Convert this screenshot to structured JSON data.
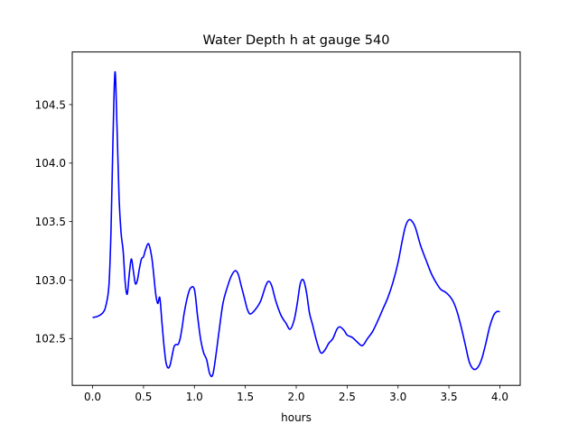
{
  "chart_data": {
    "type": "line",
    "title": "Water Depth h at gauge 540",
    "xlabel": "hours",
    "ylabel": "",
    "xlim": [
      -0.2,
      4.2
    ],
    "ylim": [
      102.1,
      104.95
    ],
    "xticks": [
      0.0,
      0.5,
      1.0,
      1.5,
      2.0,
      2.5,
      3.0,
      3.5,
      4.0
    ],
    "xtick_labels": [
      "0.0",
      "0.5",
      "1.0",
      "1.5",
      "2.0",
      "2.5",
      "3.0",
      "3.5",
      "4.0"
    ],
    "yticks": [
      102.5,
      103.0,
      103.5,
      104.0,
      104.5
    ],
    "ytick_labels": [
      "102.5",
      "103.0",
      "103.5",
      "104.0",
      "104.5"
    ],
    "grid": false,
    "series": [
      {
        "color": "#0000ff",
        "x": [
          0.0,
          0.05,
          0.1,
          0.13,
          0.16,
          0.18,
          0.2,
          0.22,
          0.24,
          0.26,
          0.28,
          0.3,
          0.32,
          0.34,
          0.36,
          0.38,
          0.4,
          0.42,
          0.44,
          0.46,
          0.48,
          0.5,
          0.52,
          0.55,
          0.58,
          0.6,
          0.62,
          0.64,
          0.66,
          0.68,
          0.7,
          0.72,
          0.74,
          0.76,
          0.78,
          0.8,
          0.82,
          0.84,
          0.86,
          0.88,
          0.9,
          0.93,
          0.96,
          1.0,
          1.03,
          1.06,
          1.09,
          1.12,
          1.15,
          1.18,
          1.21,
          1.24,
          1.28,
          1.32,
          1.36,
          1.4,
          1.43,
          1.46,
          1.49,
          1.52,
          1.55,
          1.6,
          1.65,
          1.7,
          1.73,
          1.76,
          1.8,
          1.85,
          1.9,
          1.94,
          1.98,
          2.01,
          2.04,
          2.07,
          2.1,
          2.13,
          2.16,
          2.2,
          2.24,
          2.28,
          2.32,
          2.36,
          2.4,
          2.43,
          2.47,
          2.5,
          2.55,
          2.6,
          2.65,
          2.7,
          2.75,
          2.8,
          2.85,
          2.9,
          2.95,
          3.0,
          3.04,
          3.07,
          3.1,
          3.13,
          3.17,
          3.22,
          3.28,
          3.33,
          3.38,
          3.42,
          3.46,
          3.5,
          3.54,
          3.58,
          3.62,
          3.66,
          3.7,
          3.74,
          3.78,
          3.82,
          3.86,
          3.9,
          3.94,
          3.97,
          4.0
        ],
        "y": [
          102.68,
          102.69,
          102.72,
          102.78,
          102.95,
          103.4,
          104.2,
          104.78,
          104.3,
          103.7,
          103.4,
          103.25,
          102.98,
          102.88,
          103.05,
          103.18,
          103.08,
          102.97,
          103.0,
          103.1,
          103.18,
          103.2,
          103.26,
          103.31,
          103.2,
          103.05,
          102.88,
          102.8,
          102.85,
          102.65,
          102.45,
          102.3,
          102.25,
          102.27,
          102.35,
          102.43,
          102.45,
          102.45,
          102.5,
          102.6,
          102.72,
          102.85,
          102.93,
          102.92,
          102.7,
          102.5,
          102.38,
          102.32,
          102.2,
          102.19,
          102.35,
          102.55,
          102.8,
          102.93,
          103.03,
          103.08,
          103.05,
          102.95,
          102.85,
          102.75,
          102.71,
          102.75,
          102.82,
          102.95,
          102.99,
          102.95,
          102.82,
          102.7,
          102.63,
          102.58,
          102.66,
          102.8,
          102.97,
          103.0,
          102.9,
          102.72,
          102.62,
          102.48,
          102.38,
          102.4,
          102.46,
          102.5,
          102.58,
          102.6,
          102.57,
          102.53,
          102.51,
          102.47,
          102.44,
          102.5,
          102.56,
          102.65,
          102.75,
          102.85,
          102.98,
          103.15,
          103.33,
          103.45,
          103.51,
          103.51,
          103.45,
          103.3,
          103.16,
          103.05,
          102.97,
          102.92,
          102.9,
          102.87,
          102.82,
          102.73,
          102.6,
          102.45,
          102.3,
          102.24,
          102.25,
          102.32,
          102.45,
          102.6,
          102.7,
          102.73,
          102.73
        ]
      }
    ]
  }
}
